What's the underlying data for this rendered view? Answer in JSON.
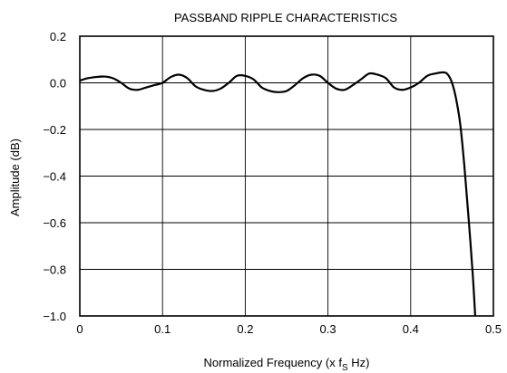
{
  "chart_data": {
    "type": "line",
    "title": "PASSBAND RIPPLE CHARACTERISTICS",
    "xlabel": "Normalized Frequency (x f",
    "xlabel_sub": "S",
    "xlabel_suffix": " Hz)",
    "ylabel": "Amplitude (dB)",
    "xlim": [
      0,
      0.5
    ],
    "ylim": [
      -1.0,
      0.2
    ],
    "grid": true,
    "x_ticks": [
      0,
      0.1,
      0.2,
      0.3,
      0.4,
      0.5
    ],
    "x_tick_labels": [
      "0",
      "0.1",
      "0.2",
      "0.3",
      "0.4",
      "0.5"
    ],
    "y_ticks": [
      0.2,
      0.0,
      -0.2,
      -0.4,
      -0.6,
      -0.8,
      -1.0
    ],
    "y_tick_labels": [
      "0.2",
      "0.0",
      "−0.2",
      "−0.4",
      "−0.6",
      "−0.8",
      "−1.0"
    ],
    "series": [
      {
        "color": "#000000",
        "x": [
          0.0,
          0.01,
          0.02,
          0.03,
          0.04,
          0.05,
          0.06,
          0.07,
          0.08,
          0.09,
          0.1,
          0.11,
          0.12,
          0.13,
          0.14,
          0.15,
          0.16,
          0.17,
          0.18,
          0.19,
          0.2,
          0.21,
          0.22,
          0.23,
          0.24,
          0.25,
          0.26,
          0.27,
          0.28,
          0.29,
          0.3,
          0.31,
          0.32,
          0.33,
          0.34,
          0.35,
          0.36,
          0.37,
          0.38,
          0.39,
          0.4,
          0.41,
          0.42,
          0.43,
          0.44,
          0.445,
          0.45,
          0.455,
          0.46,
          0.465,
          0.47,
          0.475,
          0.478
        ],
        "y": [
          0.01,
          0.02,
          0.025,
          0.027,
          0.02,
          0.0,
          -0.025,
          -0.03,
          -0.02,
          -0.01,
          0.0,
          0.025,
          0.035,
          0.02,
          -0.015,
          -0.03,
          -0.035,
          -0.025,
          0.0,
          0.03,
          0.03,
          0.015,
          -0.02,
          -0.035,
          -0.04,
          -0.035,
          -0.01,
          0.02,
          0.035,
          0.03,
          0.0,
          -0.025,
          -0.03,
          -0.01,
          0.015,
          0.04,
          0.035,
          0.02,
          -0.02,
          -0.03,
          -0.02,
          0.0,
          0.03,
          0.04,
          0.045,
          0.035,
          0.0,
          -0.07,
          -0.18,
          -0.36,
          -0.58,
          -0.82,
          -1.0
        ]
      }
    ]
  }
}
